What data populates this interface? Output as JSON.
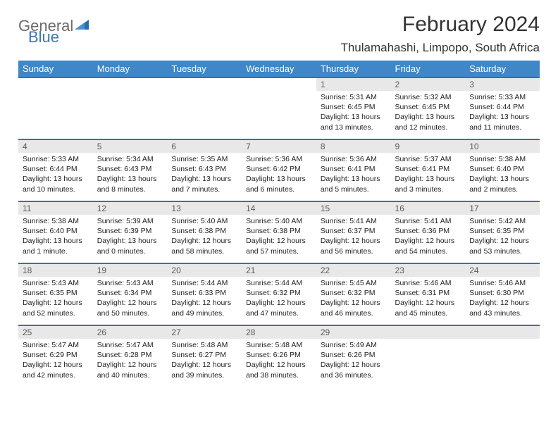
{
  "logo": {
    "general": "General",
    "blue": "Blue"
  },
  "title": "February 2024",
  "location": "Thulamahashi, Limpopo, South Africa",
  "colors": {
    "header_bg": "#3f87c7",
    "header_text": "#ffffff",
    "row_border": "#3f6f9a",
    "daynum_bg": "#e8e8e8",
    "daynum_text": "#5a5a5a",
    "body_text": "#222222",
    "logo_gray": "#6b6b6b",
    "logo_blue": "#3a78b5",
    "page_bg": "#ffffff"
  },
  "weekdays": [
    "Sunday",
    "Monday",
    "Tuesday",
    "Wednesday",
    "Thursday",
    "Friday",
    "Saturday"
  ],
  "weeks": [
    [
      null,
      null,
      null,
      null,
      {
        "n": "1",
        "sr": "Sunrise: 5:31 AM",
        "ss": "Sunset: 6:45 PM",
        "d1": "Daylight: 13 hours",
        "d2": "and 13 minutes."
      },
      {
        "n": "2",
        "sr": "Sunrise: 5:32 AM",
        "ss": "Sunset: 6:45 PM",
        "d1": "Daylight: 13 hours",
        "d2": "and 12 minutes."
      },
      {
        "n": "3",
        "sr": "Sunrise: 5:33 AM",
        "ss": "Sunset: 6:44 PM",
        "d1": "Daylight: 13 hours",
        "d2": "and 11 minutes."
      }
    ],
    [
      {
        "n": "4",
        "sr": "Sunrise: 5:33 AM",
        "ss": "Sunset: 6:44 PM",
        "d1": "Daylight: 13 hours",
        "d2": "and 10 minutes."
      },
      {
        "n": "5",
        "sr": "Sunrise: 5:34 AM",
        "ss": "Sunset: 6:43 PM",
        "d1": "Daylight: 13 hours",
        "d2": "and 8 minutes."
      },
      {
        "n": "6",
        "sr": "Sunrise: 5:35 AM",
        "ss": "Sunset: 6:43 PM",
        "d1": "Daylight: 13 hours",
        "d2": "and 7 minutes."
      },
      {
        "n": "7",
        "sr": "Sunrise: 5:36 AM",
        "ss": "Sunset: 6:42 PM",
        "d1": "Daylight: 13 hours",
        "d2": "and 6 minutes."
      },
      {
        "n": "8",
        "sr": "Sunrise: 5:36 AM",
        "ss": "Sunset: 6:41 PM",
        "d1": "Daylight: 13 hours",
        "d2": "and 5 minutes."
      },
      {
        "n": "9",
        "sr": "Sunrise: 5:37 AM",
        "ss": "Sunset: 6:41 PM",
        "d1": "Daylight: 13 hours",
        "d2": "and 3 minutes."
      },
      {
        "n": "10",
        "sr": "Sunrise: 5:38 AM",
        "ss": "Sunset: 6:40 PM",
        "d1": "Daylight: 13 hours",
        "d2": "and 2 minutes."
      }
    ],
    [
      {
        "n": "11",
        "sr": "Sunrise: 5:38 AM",
        "ss": "Sunset: 6:40 PM",
        "d1": "Daylight: 13 hours",
        "d2": "and 1 minute."
      },
      {
        "n": "12",
        "sr": "Sunrise: 5:39 AM",
        "ss": "Sunset: 6:39 PM",
        "d1": "Daylight: 13 hours",
        "d2": "and 0 minutes."
      },
      {
        "n": "13",
        "sr": "Sunrise: 5:40 AM",
        "ss": "Sunset: 6:38 PM",
        "d1": "Daylight: 12 hours",
        "d2": "and 58 minutes."
      },
      {
        "n": "14",
        "sr": "Sunrise: 5:40 AM",
        "ss": "Sunset: 6:38 PM",
        "d1": "Daylight: 12 hours",
        "d2": "and 57 minutes."
      },
      {
        "n": "15",
        "sr": "Sunrise: 5:41 AM",
        "ss": "Sunset: 6:37 PM",
        "d1": "Daylight: 12 hours",
        "d2": "and 56 minutes."
      },
      {
        "n": "16",
        "sr": "Sunrise: 5:41 AM",
        "ss": "Sunset: 6:36 PM",
        "d1": "Daylight: 12 hours",
        "d2": "and 54 minutes."
      },
      {
        "n": "17",
        "sr": "Sunrise: 5:42 AM",
        "ss": "Sunset: 6:35 PM",
        "d1": "Daylight: 12 hours",
        "d2": "and 53 minutes."
      }
    ],
    [
      {
        "n": "18",
        "sr": "Sunrise: 5:43 AM",
        "ss": "Sunset: 6:35 PM",
        "d1": "Daylight: 12 hours",
        "d2": "and 52 minutes."
      },
      {
        "n": "19",
        "sr": "Sunrise: 5:43 AM",
        "ss": "Sunset: 6:34 PM",
        "d1": "Daylight: 12 hours",
        "d2": "and 50 minutes."
      },
      {
        "n": "20",
        "sr": "Sunrise: 5:44 AM",
        "ss": "Sunset: 6:33 PM",
        "d1": "Daylight: 12 hours",
        "d2": "and 49 minutes."
      },
      {
        "n": "21",
        "sr": "Sunrise: 5:44 AM",
        "ss": "Sunset: 6:32 PM",
        "d1": "Daylight: 12 hours",
        "d2": "and 47 minutes."
      },
      {
        "n": "22",
        "sr": "Sunrise: 5:45 AM",
        "ss": "Sunset: 6:32 PM",
        "d1": "Daylight: 12 hours",
        "d2": "and 46 minutes."
      },
      {
        "n": "23",
        "sr": "Sunrise: 5:46 AM",
        "ss": "Sunset: 6:31 PM",
        "d1": "Daylight: 12 hours",
        "d2": "and 45 minutes."
      },
      {
        "n": "24",
        "sr": "Sunrise: 5:46 AM",
        "ss": "Sunset: 6:30 PM",
        "d1": "Daylight: 12 hours",
        "d2": "and 43 minutes."
      }
    ],
    [
      {
        "n": "25",
        "sr": "Sunrise: 5:47 AM",
        "ss": "Sunset: 6:29 PM",
        "d1": "Daylight: 12 hours",
        "d2": "and 42 minutes."
      },
      {
        "n": "26",
        "sr": "Sunrise: 5:47 AM",
        "ss": "Sunset: 6:28 PM",
        "d1": "Daylight: 12 hours",
        "d2": "and 40 minutes."
      },
      {
        "n": "27",
        "sr": "Sunrise: 5:48 AM",
        "ss": "Sunset: 6:27 PM",
        "d1": "Daylight: 12 hours",
        "d2": "and 39 minutes."
      },
      {
        "n": "28",
        "sr": "Sunrise: 5:48 AM",
        "ss": "Sunset: 6:26 PM",
        "d1": "Daylight: 12 hours",
        "d2": "and 38 minutes."
      },
      {
        "n": "29",
        "sr": "Sunrise: 5:49 AM",
        "ss": "Sunset: 6:26 PM",
        "d1": "Daylight: 12 hours",
        "d2": "and 36 minutes."
      },
      null,
      null
    ]
  ]
}
